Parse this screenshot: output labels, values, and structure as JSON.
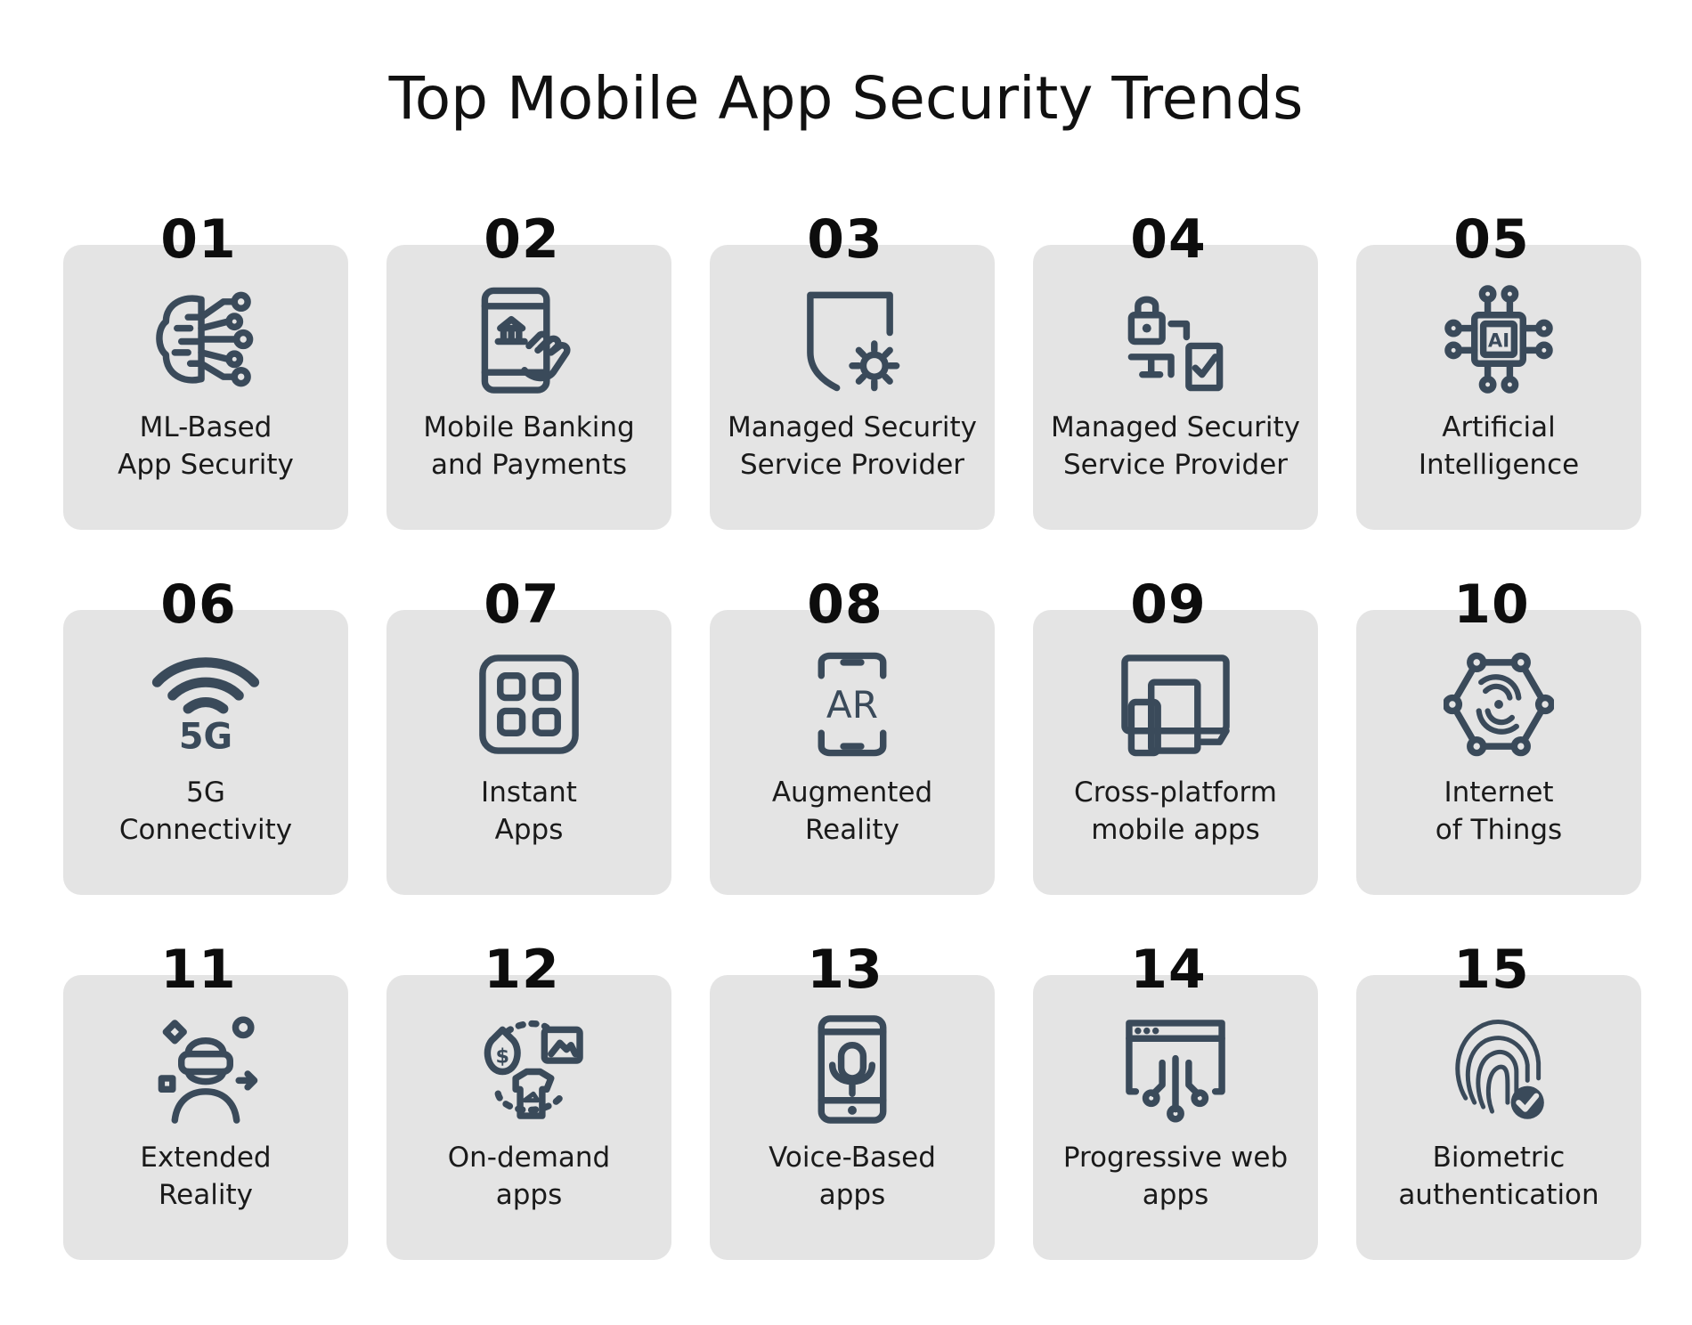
{
  "title": "Top Mobile App Security Trends",
  "colors": {
    "card": "#e4e4e4",
    "icon": "#3a4a5a",
    "text": "#1a1a1a"
  },
  "trends": [
    {
      "number": "01",
      "line1": "ML-Based",
      "line2": "App Security",
      "icon": "brain-circuit-icon"
    },
    {
      "number": "02",
      "line1": "Mobile Banking",
      "line2": "and Payments",
      "icon": "mobile-banking-icon"
    },
    {
      "number": "03",
      "line1": "Managed Security",
      "line2": "Service Provider",
      "icon": "shield-gear-icon"
    },
    {
      "number": "04",
      "line1": "Managed Security",
      "line2": "Service Provider",
      "icon": "lock-network-check-icon"
    },
    {
      "number": "05",
      "line1": "Artificial",
      "line2": "Intelligence",
      "icon": "ai-chip-icon"
    },
    {
      "number": "06",
      "line1": "5G",
      "line2": "Connectivity",
      "icon": "wifi-5g-icon"
    },
    {
      "number": "07",
      "line1": "Instant",
      "line2": "Apps",
      "icon": "app-grid-icon"
    },
    {
      "number": "08",
      "line1": "Augmented",
      "line2": "Reality",
      "icon": "ar-phone-icon"
    },
    {
      "number": "09",
      "line1": "Cross-platform",
      "line2": "mobile apps",
      "icon": "multi-device-icon"
    },
    {
      "number": "10",
      "line1": "Internet",
      "line2": "of Things",
      "icon": "iot-hexagon-icon"
    },
    {
      "number": "11",
      "line1": "Extended",
      "line2": "Reality",
      "icon": "vr-headset-person-icon"
    },
    {
      "number": "12",
      "line1": "On-demand",
      "line2": "apps",
      "icon": "on-demand-services-icon"
    },
    {
      "number": "13",
      "line1": "Voice-Based",
      "line2": "apps",
      "icon": "voice-phone-icon"
    },
    {
      "number": "14",
      "line1": "Progressive web",
      "line2": "apps",
      "icon": "browser-circuit-icon"
    },
    {
      "number": "15",
      "line1": "Biometric",
      "line2": "authentication",
      "icon": "fingerprint-check-icon"
    }
  ],
  "icon_text": {
    "ai": "AI",
    "g5": "5G",
    "ar": "AR",
    "dollar": "$"
  }
}
